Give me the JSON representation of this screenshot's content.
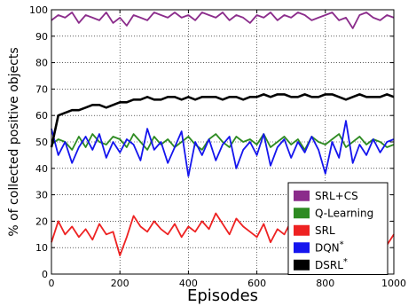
{
  "chart_data": {
    "type": "line",
    "title": "",
    "xlabel": "Episodes",
    "ylabel": "% of collected positive objects",
    "xlim": [
      0,
      1000
    ],
    "ylim": [
      0,
      100
    ],
    "xticks": [
      "0",
      "200",
      "400",
      "600",
      "800",
      "1000"
    ],
    "yticks": [
      "0",
      "10",
      "20",
      "30",
      "40",
      "50",
      "60",
      "70",
      "80",
      "90",
      "100"
    ],
    "grid": "on (dotted)",
    "legend_position": "lower-right",
    "series": [
      {
        "name": "SRL+CS",
        "color": "#8b2c8b",
        "x": [
          0,
          20,
          40,
          60,
          80,
          100,
          120,
          140,
          160,
          180,
          200,
          220,
          240,
          260,
          280,
          300,
          320,
          340,
          360,
          380,
          400,
          420,
          440,
          460,
          480,
          500,
          520,
          540,
          560,
          580,
          600,
          620,
          640,
          660,
          680,
          700,
          720,
          740,
          760,
          780,
          800,
          820,
          840,
          860,
          880,
          900,
          920,
          940,
          960,
          980,
          1000
        ],
        "values": [
          96,
          98,
          97,
          99,
          95,
          98,
          97,
          96,
          99,
          95,
          97,
          94,
          98,
          97,
          96,
          99,
          98,
          97,
          99,
          97,
          98,
          96,
          99,
          98,
          97,
          99,
          96,
          98,
          97,
          95,
          98,
          97,
          99,
          96,
          98,
          97,
          99,
          98,
          96,
          97,
          98,
          99,
          96,
          97,
          93,
          98,
          99,
          97,
          96,
          98,
          97
        ]
      },
      {
        "name": "Q-Learning",
        "color": "#2e8b22",
        "x": [
          0,
          20,
          40,
          60,
          80,
          100,
          120,
          140,
          160,
          180,
          200,
          220,
          240,
          260,
          280,
          300,
          320,
          340,
          360,
          380,
          400,
          420,
          440,
          460,
          480,
          500,
          520,
          540,
          560,
          580,
          600,
          620,
          640,
          660,
          680,
          700,
          720,
          740,
          760,
          780,
          800,
          820,
          840,
          860,
          880,
          900,
          920,
          940,
          960,
          980,
          1000
        ],
        "values": [
          49,
          51,
          50,
          47,
          52,
          48,
          53,
          50,
          49,
          52,
          51,
          48,
          53,
          50,
          47,
          52,
          49,
          51,
          48,
          50,
          52,
          49,
          47,
          51,
          53,
          50,
          48,
          52,
          50,
          51,
          49,
          53,
          48,
          50,
          52,
          49,
          51,
          47,
          52,
          50,
          49,
          51,
          53,
          48,
          50,
          52,
          49,
          51,
          50,
          48,
          49
        ]
      },
      {
        "name": "SRL",
        "color": "#ee2222",
        "x": [
          0,
          20,
          40,
          60,
          80,
          100,
          120,
          140,
          160,
          180,
          200,
          220,
          240,
          260,
          280,
          300,
          320,
          340,
          360,
          380,
          400,
          420,
          440,
          460,
          480,
          500,
          520,
          540,
          560,
          580,
          600,
          620,
          640,
          660,
          680,
          700,
          720,
          740,
          760,
          780,
          800,
          820,
          840,
          860,
          880,
          900,
          920,
          940,
          960,
          980,
          1000
        ],
        "values": [
          12,
          20,
          15,
          18,
          14,
          17,
          13,
          19,
          15,
          16,
          7,
          14,
          22,
          18,
          16,
          20,
          17,
          15,
          19,
          14,
          18,
          16,
          20,
          17,
          23,
          19,
          15,
          21,
          18,
          16,
          14,
          19,
          12,
          17,
          15,
          20,
          18,
          13,
          16,
          15,
          19,
          12,
          18,
          14,
          17,
          13,
          16,
          15,
          18,
          11,
          15
        ]
      },
      {
        "name": "DQN*",
        "color": "#1515ee",
        "x": [
          0,
          20,
          40,
          60,
          80,
          100,
          120,
          140,
          160,
          180,
          200,
          220,
          240,
          260,
          280,
          300,
          320,
          340,
          360,
          380,
          400,
          420,
          440,
          460,
          480,
          500,
          520,
          540,
          560,
          580,
          600,
          620,
          640,
          660,
          680,
          700,
          720,
          740,
          760,
          780,
          800,
          820,
          840,
          860,
          880,
          900,
          920,
          940,
          960,
          980,
          1000
        ],
        "values": [
          55,
          45,
          50,
          42,
          48,
          52,
          47,
          53,
          44,
          50,
          46,
          51,
          49,
          43,
          55,
          47,
          50,
          42,
          48,
          54,
          37,
          50,
          45,
          51,
          43,
          49,
          52,
          40,
          47,
          50,
          45,
          53,
          41,
          48,
          51,
          44,
          50,
          46,
          52,
          47,
          38,
          50,
          44,
          58,
          42,
          49,
          45,
          51,
          46,
          50,
          51
        ]
      },
      {
        "name": "DSRL*",
        "color": "#000000",
        "x": [
          0,
          20,
          40,
          60,
          80,
          100,
          120,
          140,
          160,
          180,
          200,
          220,
          240,
          260,
          280,
          300,
          320,
          340,
          360,
          380,
          400,
          420,
          440,
          460,
          480,
          500,
          520,
          540,
          560,
          580,
          600,
          620,
          640,
          660,
          680,
          700,
          720,
          740,
          760,
          780,
          800,
          820,
          840,
          860,
          880,
          900,
          920,
          940,
          960,
          980,
          1000
        ],
        "values": [
          48,
          60,
          61,
          62,
          62,
          63,
          64,
          64,
          63,
          64,
          65,
          65,
          66,
          66,
          67,
          66,
          66,
          67,
          67,
          66,
          67,
          66,
          67,
          67,
          67,
          66,
          67,
          67,
          66,
          67,
          67,
          68,
          67,
          68,
          68,
          67,
          67,
          68,
          67,
          67,
          68,
          68,
          67,
          66,
          67,
          68,
          67,
          67,
          67,
          68,
          67
        ]
      }
    ]
  }
}
